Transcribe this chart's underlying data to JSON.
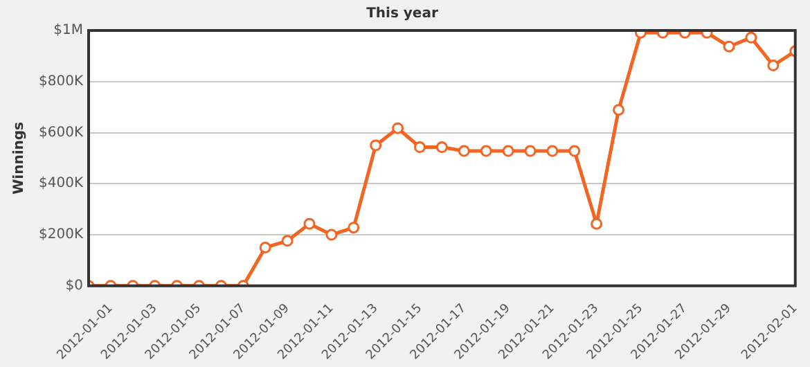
{
  "chart_data": {
    "type": "line",
    "title": "This year",
    "ylabel": "Winnings",
    "x": [
      "2011-12-31",
      "2012-01-01",
      "2012-01-02",
      "2012-01-03",
      "2012-01-04",
      "2012-01-05",
      "2012-01-06",
      "2012-01-07",
      "2012-01-08",
      "2012-01-09",
      "2012-01-10",
      "2012-01-11",
      "2012-01-12",
      "2012-01-13",
      "2012-01-14",
      "2012-01-15",
      "2012-01-16",
      "2012-01-17",
      "2012-01-18",
      "2012-01-19",
      "2012-01-20",
      "2012-01-21",
      "2012-01-22",
      "2012-01-23",
      "2012-01-24",
      "2012-01-25",
      "2012-01-26",
      "2012-01-27",
      "2012-01-28",
      "2012-01-29",
      "2012-01-30",
      "2012-01-31",
      "2012-02-01"
    ],
    "series": [
      {
        "color": "#f26522",
        "values": [
          0,
          0,
          0,
          0,
          0,
          0,
          0,
          0,
          150000,
          176000,
          243000,
          200000,
          228000,
          550000,
          617000,
          543000,
          543000,
          528000,
          528000,
          528000,
          528000,
          528000,
          528000,
          243000,
          689000,
          991000,
          991000,
          991000,
          991000,
          937000,
          972000,
          863000,
          919000
        ]
      }
    ],
    "xlim": [
      "2011-12-31",
      "2012-02-01"
    ],
    "xticks": [
      "2012-01-01",
      "2012-01-03",
      "2012-01-05",
      "2012-01-07",
      "2012-01-09",
      "2012-01-11",
      "2012-01-13",
      "2012-01-15",
      "2012-01-17",
      "2012-01-19",
      "2012-01-21",
      "2012-01-23",
      "2012-01-25",
      "2012-01-27",
      "2012-01-29",
      "2012-02-01"
    ],
    "ylim": [
      0,
      1000000
    ],
    "yticks": [
      {
        "value": 0,
        "label": "$0"
      },
      {
        "value": 200000,
        "label": "$200K"
      },
      {
        "value": 400000,
        "label": "$400K"
      },
      {
        "value": 600000,
        "label": "$600K"
      },
      {
        "value": 800000,
        "label": "$800K"
      },
      {
        "value": 1000000,
        "label": "$1M"
      }
    ],
    "grid": "y",
    "marker": "circle",
    "line_style": "solid",
    "legend": false
  }
}
